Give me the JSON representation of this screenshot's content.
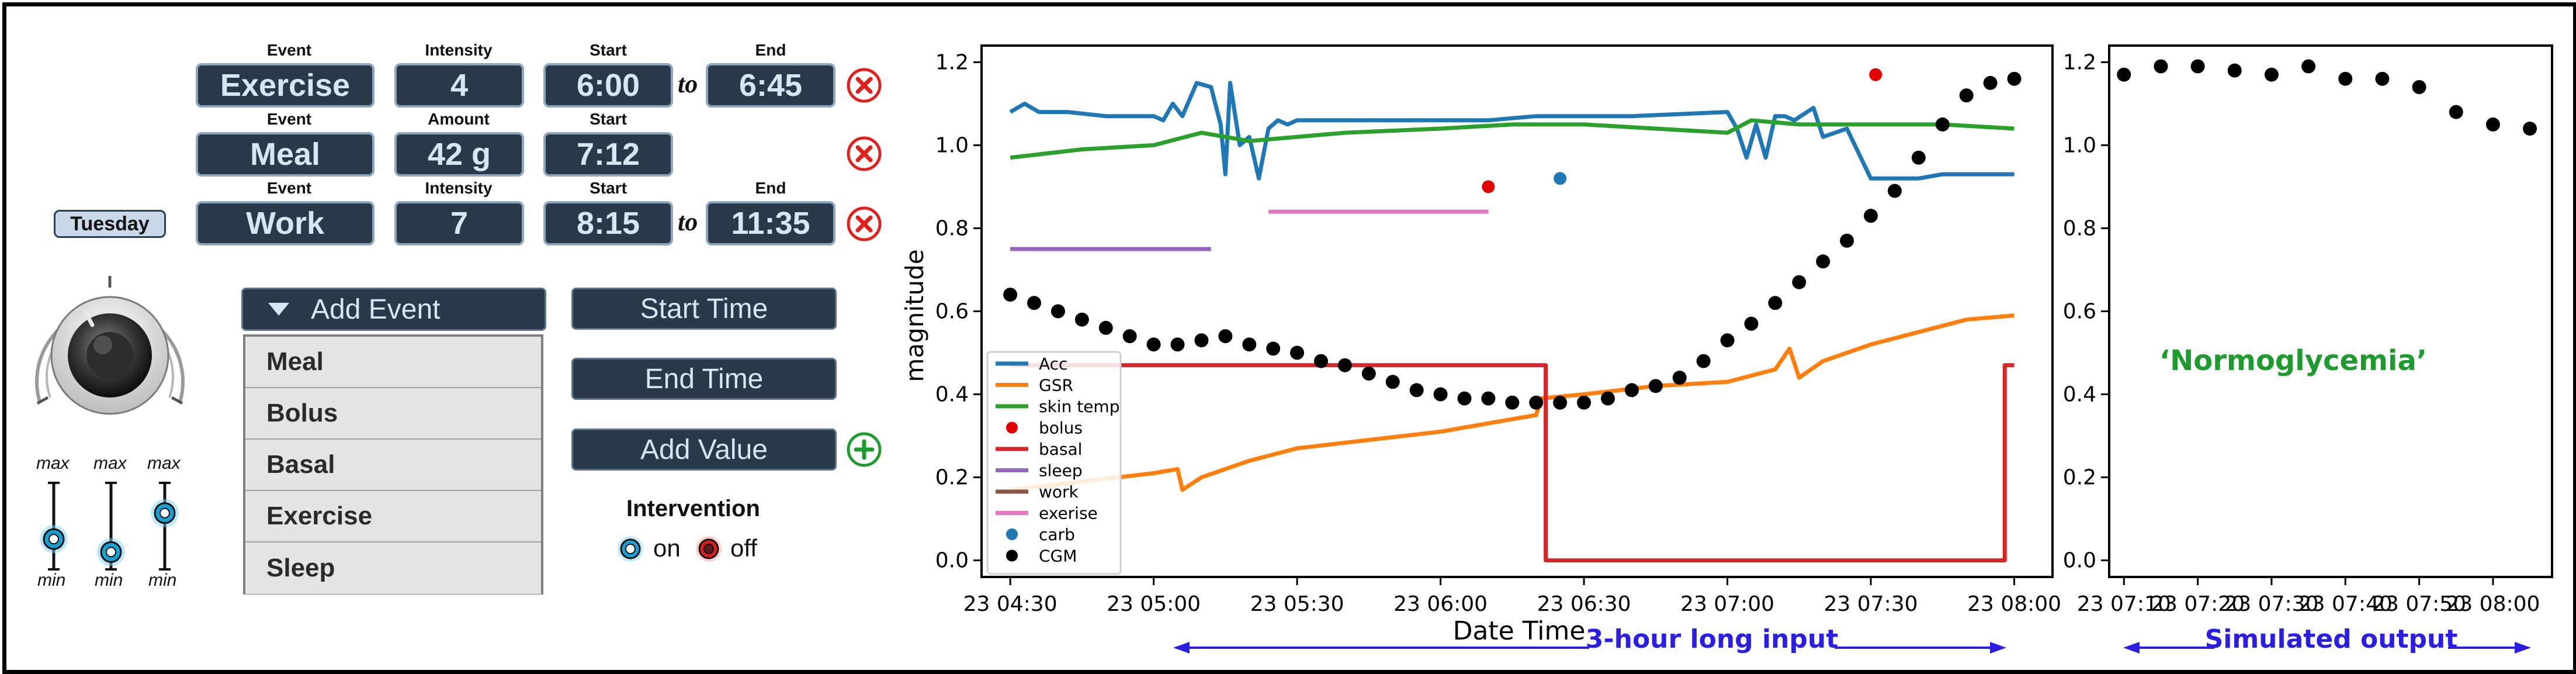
{
  "controls": {
    "day_label": "Tuesday",
    "events": [
      {
        "header_type": "Event",
        "type": "Exercise",
        "header_value": "Intensity",
        "value": "4",
        "header_start": "Start",
        "start": "6:00",
        "to": "to",
        "header_end": "End",
        "end": "6:45"
      },
      {
        "header_type": "Event",
        "type": "Meal",
        "header_value": "Amount",
        "value": "42 g",
        "header_start": "Start",
        "start": "7:12"
      },
      {
        "header_type": "Event",
        "type": "Work",
        "header_value": "Intensity",
        "value": "7",
        "header_start": "Start",
        "start": "8:15",
        "to": "to",
        "header_end": "End",
        "end": "11:35"
      }
    ],
    "add_event_label": "Add Event",
    "start_time_label": "Start Time",
    "end_time_label": "End Time",
    "add_value_label": "Add Value",
    "menu_items": [
      "Meal",
      "Bolus",
      "Basal",
      "Exercise",
      "Sleep"
    ],
    "sliders": [
      {
        "max": "max",
        "min": "min",
        "level": 0.35
      },
      {
        "max": "max",
        "min": "min",
        "level": 0.2
      },
      {
        "max": "max",
        "min": "min",
        "level": 0.65
      }
    ],
    "intervention": {
      "title": "Intervention",
      "on": "on",
      "off": "off"
    },
    "colors": {
      "box": "#29394a",
      "box_border": "#8fa7bd",
      "delete": "#e0201c",
      "add": "#1f9a2e",
      "slider_knob": "#1aa0d0"
    }
  },
  "chart_data": [
    {
      "type": "line",
      "xlabel": "Date Time",
      "ylabel": "magnitude",
      "x_ticks": [
        "23 04:30",
        "23 05:00",
        "23 05:30",
        "23 06:00",
        "23 06:30",
        "23 07:00",
        "23 07:30",
        "23 08:00"
      ],
      "y_ticks": [
        "0.0",
        "0.2",
        "0.4",
        "0.6",
        "0.8",
        "1.0",
        "1.2"
      ],
      "ylim": [
        -0.04,
        1.24
      ],
      "xlim": [
        "04:24",
        "08:08"
      ],
      "legend": "lower-left",
      "series": [
        {
          "name": "Acc",
          "color": "#1f77b4",
          "style": "line",
          "x": [
            "04:30",
            "04:33",
            "04:36",
            "04:42",
            "04:50",
            "05:00",
            "05:02",
            "05:04",
            "05:06",
            "05:09",
            "05:12",
            "05:14",
            "05:15",
            "05:16",
            "05:18",
            "05:20",
            "05:22",
            "05:24",
            "05:26",
            "05:28",
            "05:30",
            "05:40",
            "06:00",
            "06:10",
            "06:20",
            "06:30",
            "06:40",
            "07:00",
            "07:02",
            "07:04",
            "07:06",
            "07:08",
            "07:10",
            "07:12",
            "07:14",
            "07:18",
            "07:20",
            "07:25",
            "07:30",
            "07:35",
            "07:40",
            "07:45",
            "07:50",
            "07:55",
            "08:00"
          ],
          "y": [
            1.08,
            1.1,
            1.08,
            1.08,
            1.07,
            1.07,
            1.06,
            1.1,
            1.07,
            1.15,
            1.14,
            1.05,
            0.93,
            1.15,
            1.0,
            1.02,
            0.92,
            1.04,
            1.06,
            1.05,
            1.06,
            1.06,
            1.06,
            1.06,
            1.07,
            1.07,
            1.07,
            1.08,
            1.04,
            0.97,
            1.05,
            0.97,
            1.07,
            1.07,
            1.06,
            1.09,
            1.02,
            1.04,
            0.92,
            0.92,
            0.92,
            0.93,
            0.93,
            0.93,
            0.93
          ]
        },
        {
          "name": "GSR",
          "color": "#ff7f0e",
          "style": "line",
          "x": [
            "04:30",
            "04:45",
            "05:00",
            "05:05",
            "05:06",
            "05:10",
            "05:20",
            "05:30",
            "05:45",
            "06:00",
            "06:15",
            "06:20",
            "06:21",
            "06:30",
            "06:45",
            "07:00",
            "07:10",
            "07:13",
            "07:15",
            "07:20",
            "07:30",
            "07:40",
            "07:50",
            "08:00"
          ],
          "y": [
            0.17,
            0.19,
            0.21,
            0.22,
            0.17,
            0.2,
            0.24,
            0.27,
            0.29,
            0.31,
            0.34,
            0.35,
            0.39,
            0.4,
            0.42,
            0.43,
            0.46,
            0.51,
            0.44,
            0.48,
            0.52,
            0.55,
            0.58,
            0.59
          ]
        },
        {
          "name": "skin temp",
          "color": "#2ca02c",
          "style": "line",
          "x": [
            "04:30",
            "04:45",
            "05:00",
            "05:10",
            "05:20",
            "05:40",
            "06:00",
            "06:15",
            "06:30",
            "06:45",
            "07:00",
            "07:05",
            "07:15",
            "07:30",
            "07:45",
            "08:00"
          ],
          "y": [
            0.97,
            0.99,
            1.0,
            1.03,
            1.01,
            1.03,
            1.04,
            1.05,
            1.05,
            1.04,
            1.03,
            1.06,
            1.05,
            1.05,
            1.05,
            1.04
          ]
        },
        {
          "name": "bolus",
          "color": "#e50000",
          "style": "dot",
          "x": [
            "06:10",
            "07:31"
          ],
          "y": [
            0.9,
            1.17
          ]
        },
        {
          "name": "basal",
          "color": "#d62728",
          "style": "line",
          "x": [
            "04:30",
            "06:22",
            "06:22",
            "07:58",
            "07:58",
            "08:00"
          ],
          "y": [
            0.47,
            0.47,
            0.0,
            0.0,
            0.47,
            0.47
          ]
        },
        {
          "name": "sleep",
          "color": "#9467bd",
          "style": "line",
          "x": [
            "04:30",
            "05:12"
          ],
          "y": [
            0.75,
            0.75
          ]
        },
        {
          "name": "work",
          "color": "#8c564b",
          "style": "line",
          "x": [],
          "y": []
        },
        {
          "name": "exerise",
          "color": "#e377c2",
          "style": "line",
          "x": [
            "05:24",
            "06:10"
          ],
          "y": [
            0.84,
            0.84
          ]
        },
        {
          "name": "carb",
          "color": "#1f77b4",
          "style": "dot",
          "x": [
            "06:25"
          ],
          "y": [
            0.92
          ]
        },
        {
          "name": "CGM",
          "color": "#000000",
          "style": "dot",
          "x": [
            "04:30",
            "04:35",
            "04:40",
            "04:45",
            "04:50",
            "04:55",
            "05:00",
            "05:05",
            "05:10",
            "05:15",
            "05:20",
            "05:25",
            "05:30",
            "05:35",
            "05:40",
            "05:45",
            "05:50",
            "05:55",
            "06:00",
            "06:05",
            "06:10",
            "06:15",
            "06:20",
            "06:25",
            "06:30",
            "06:35",
            "06:40",
            "06:45",
            "06:50",
            "06:55",
            "07:00",
            "07:05",
            "07:10",
            "07:15",
            "07:20",
            "07:25",
            "07:30",
            "07:35",
            "07:40",
            "07:45",
            "07:50",
            "07:55",
            "08:00"
          ],
          "y": [
            0.64,
            0.62,
            0.6,
            0.58,
            0.56,
            0.54,
            0.52,
            0.52,
            0.53,
            0.54,
            0.52,
            0.51,
            0.5,
            0.48,
            0.47,
            0.45,
            0.43,
            0.41,
            0.4,
            0.39,
            0.39,
            0.38,
            0.38,
            0.38,
            0.38,
            0.39,
            0.41,
            0.42,
            0.44,
            0.48,
            0.53,
            0.57,
            0.62,
            0.67,
            0.72,
            0.77,
            0.83,
            0.89,
            0.97,
            1.05,
            1.12,
            1.15,
            1.16
          ]
        }
      ],
      "annotation": {
        "text": "3-hour long input",
        "color": "#2a1ee0"
      }
    },
    {
      "type": "scatter",
      "x_ticks": [
        "23 07:10",
        "23 07:20",
        "23 07:30",
        "23 07:40",
        "23 07:50",
        "23 08:00"
      ],
      "y_ticks": [
        "0.0",
        "0.2",
        "0.4",
        "0.6",
        "0.8",
        "1.0",
        "1.2"
      ],
      "ylim": [
        -0.04,
        1.24
      ],
      "xlim": [
        "07:08",
        "08:08"
      ],
      "series": [
        {
          "name": "",
          "color": "#000000",
          "x": [
            "07:10",
            "07:15",
            "07:20",
            "07:25",
            "07:30",
            "07:35",
            "07:40",
            "07:45",
            "07:50",
            "07:55",
            "08:00",
            "08:05"
          ],
          "y": [
            1.17,
            1.19,
            1.19,
            1.18,
            1.17,
            1.19,
            1.16,
            1.16,
            1.14,
            1.08,
            1.05,
            1.04
          ]
        }
      ],
      "label": {
        "text": "‘Normoglycemia’",
        "color": "#1f9a2e"
      },
      "annotation": {
        "text": "Simulated output",
        "color": "#2a1ee0"
      }
    }
  ]
}
